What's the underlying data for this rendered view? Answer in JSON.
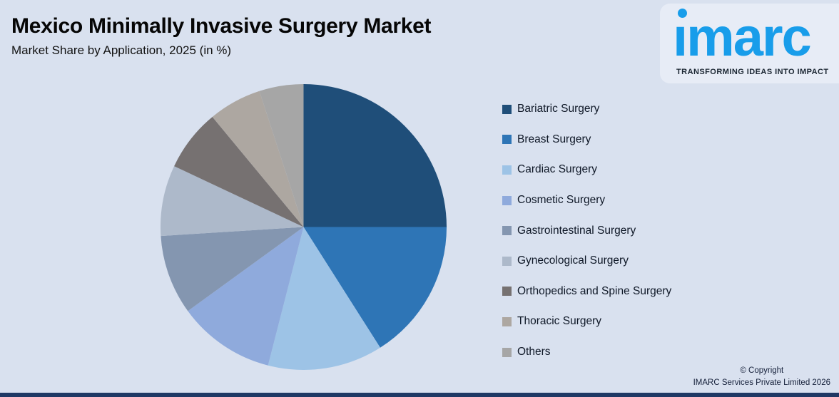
{
  "header": {
    "title": "Mexico Minimally Invasive Surgery Market",
    "subtitle": "Market Share by Application, 2025 (in %)"
  },
  "logo": {
    "word": "imarc",
    "tagline": "TRANSFORMING IDEAS INTO IMPACT",
    "brand_color": "#189DEA"
  },
  "chart_data": {
    "type": "pie",
    "title": "Mexico Minimally Invasive Surgery Market",
    "subtitle": "Market Share by Application, 2025 (in %)",
    "unit": "%",
    "start_angle": "top",
    "direction": "clockwise",
    "legend_position": "right",
    "segments": [
      {
        "label": "Bariatric Surgery",
        "value": 25,
        "color": "#1F4E79"
      },
      {
        "label": "Breast Surgery",
        "value": 16,
        "color": "#2E75B6"
      },
      {
        "label": "Cardiac Surgery",
        "value": 13,
        "color": "#9DC3E6"
      },
      {
        "label": "Cosmetic Surgery",
        "value": 11,
        "color": "#8FAADC"
      },
      {
        "label": "Gastrointestinal Surgery",
        "value": 9,
        "color": "#8496B0"
      },
      {
        "label": "Gynecological Surgery",
        "value": 8,
        "color": "#ADB9CA"
      },
      {
        "label": "Orthopedics and Spine Surgery",
        "value": 7,
        "color": "#767171"
      },
      {
        "label": "Thoracic Surgery",
        "value": 6,
        "color": "#ADA7A1"
      },
      {
        "label": "Others",
        "value": 5,
        "color": "#A6A6A6"
      }
    ]
  },
  "footer": {
    "copyright_line1": "© Copyright",
    "copyright_line2": "IMARC Services Private Limited 2026"
  }
}
